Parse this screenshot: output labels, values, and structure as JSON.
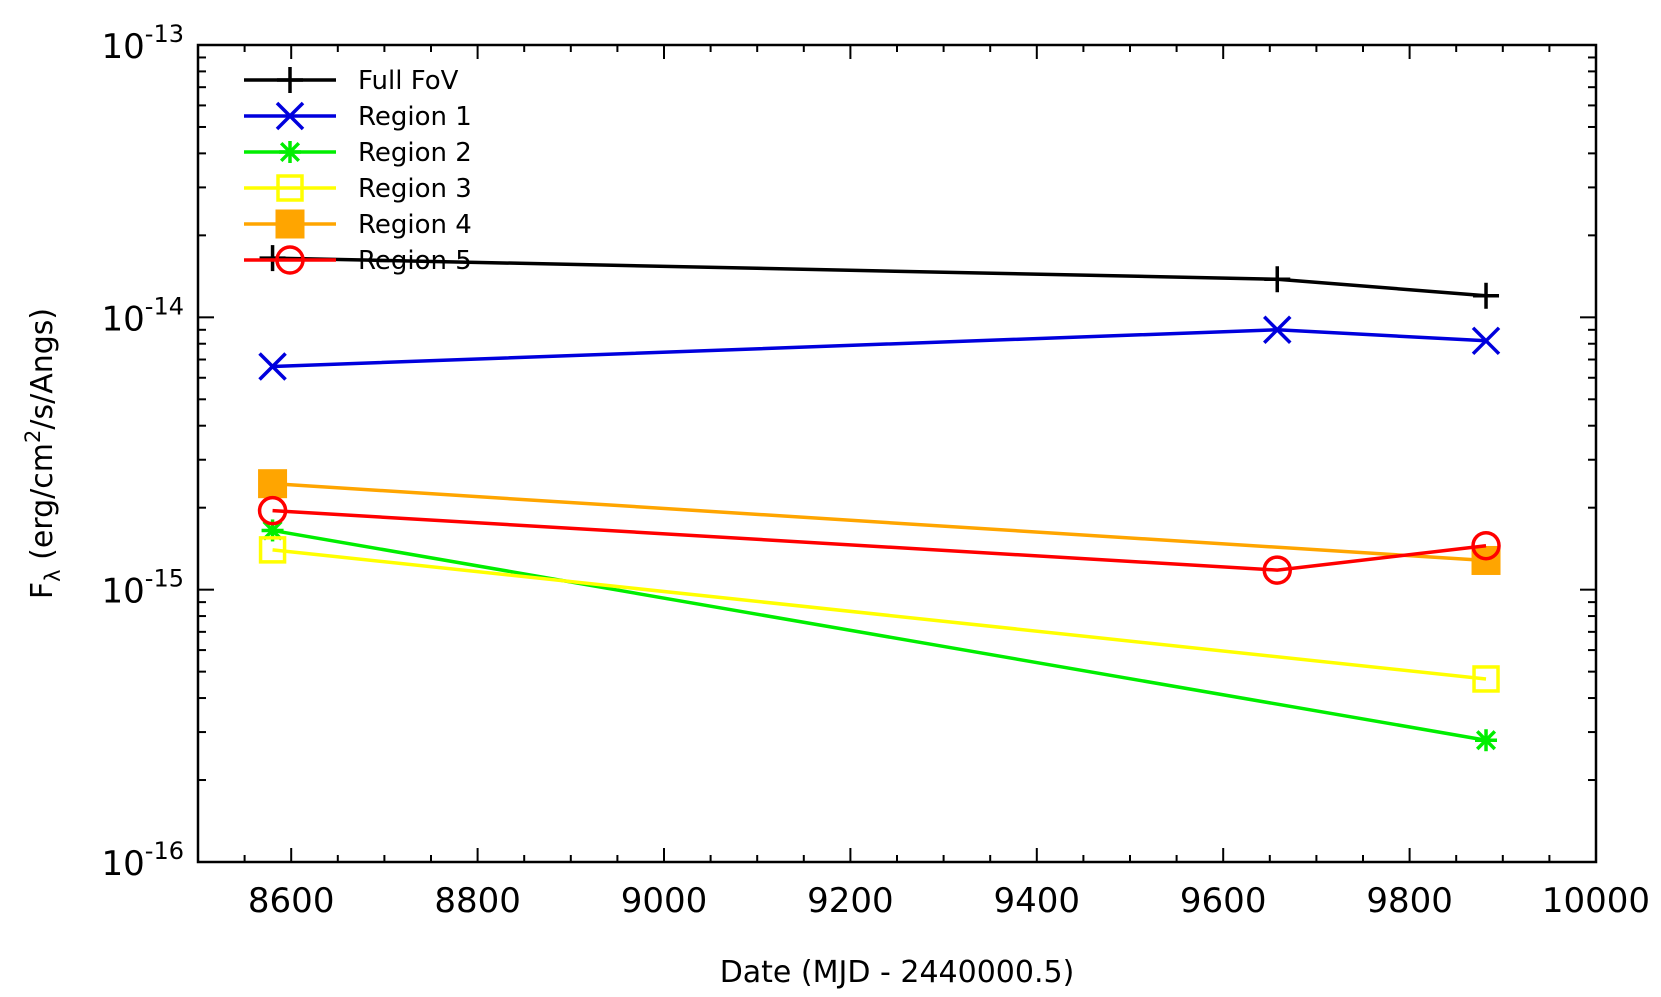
{
  "chart_data": {
    "type": "line",
    "xlabel": "Date (MJD - 2440000.5)",
    "ylabel": {
      "main": "F",
      "sub": "λ",
      "prefix": " (erg/cm",
      "sup": "2",
      "suffix": "/s/Angs)"
    },
    "xlim": [
      8500,
      10000
    ],
    "ylim": [
      1e-16,
      1e-13
    ],
    "yscale": "log",
    "grid": false,
    "legend_position": "top-left",
    "x_ticks": [
      {
        "value": 8600,
        "label": "8600"
      },
      {
        "value": 8800,
        "label": "8800"
      },
      {
        "value": 9000,
        "label": "9000"
      },
      {
        "value": 9200,
        "label": "9200"
      },
      {
        "value": 9400,
        "label": "9400"
      },
      {
        "value": 9600,
        "label": "9600"
      },
      {
        "value": 9800,
        "label": "9800"
      },
      {
        "value": 10000,
        "label": "10000"
      }
    ],
    "y_ticks": [
      {
        "value": 1e-13,
        "base": "10",
        "exp": "-13"
      },
      {
        "value": 1e-14,
        "base": "10",
        "exp": "-14"
      },
      {
        "value": 1e-15,
        "base": "10",
        "exp": "-15"
      },
      {
        "value": 1e-16,
        "base": "10",
        "exp": "-16"
      }
    ],
    "series": [
      {
        "name": "Full FoV",
        "color": "#000000",
        "marker": "plus",
        "points": [
          [
            8580,
            1.65e-14
          ],
          [
            9658,
            1.38e-14
          ],
          [
            9882,
            1.2e-14
          ]
        ]
      },
      {
        "name": "Region 1",
        "color": "#0000dd",
        "marker": "cross",
        "points": [
          [
            8580,
            6.6e-15
          ],
          [
            9658,
            9e-15
          ],
          [
            9882,
            8.2e-15
          ]
        ]
      },
      {
        "name": "Region 2",
        "color": "#00ee00",
        "marker": "asterisk",
        "points": [
          [
            8580,
            1.65e-15
          ],
          [
            9882,
            2.8e-16
          ]
        ]
      },
      {
        "name": "Region 3",
        "color": "#ffff00",
        "marker": "open-square",
        "points": [
          [
            8580,
            1.4e-15
          ],
          [
            9882,
            4.7e-16
          ]
        ]
      },
      {
        "name": "Region 4",
        "color": "#ffa500",
        "marker": "filled-square",
        "points": [
          [
            8580,
            2.45e-15
          ],
          [
            9882,
            1.28e-15
          ]
        ]
      },
      {
        "name": "Region 5",
        "color": "#ff0000",
        "marker": "open-circle",
        "points": [
          [
            8580,
            1.95e-15
          ],
          [
            9658,
            1.18e-15
          ],
          [
            9882,
            1.45e-15
          ]
        ]
      }
    ]
  }
}
